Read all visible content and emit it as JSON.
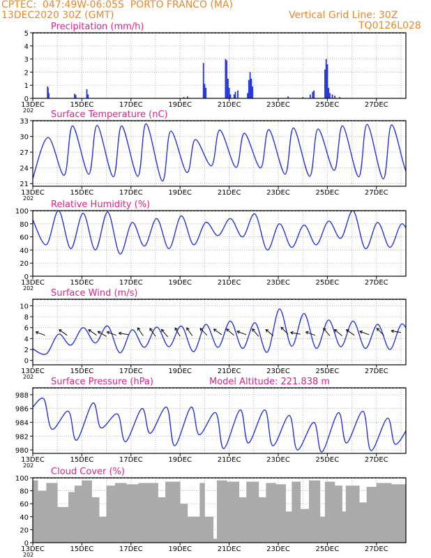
{
  "header": {
    "line1": "CPTEC:  047:49W-06:05S  PORTO FRANCO (MA)",
    "line2": "13DEC2020 30Z (GMT)",
    "grid_note": "Vertical Grid Line: 30Z",
    "code": "TQ0126L028"
  },
  "x_ticks": [
    "13DEC",
    "15DEC",
    "17DEC",
    "19DEC",
    "21DEC",
    "23DEC",
    "25DEC",
    "27DEC"
  ],
  "year_label": "202",
  "colors": {
    "line": "#2233dd",
    "bars": "#2233dd",
    "cloud": "#aaaaaa",
    "title": "#e0208a",
    "header": "#e8882a"
  },
  "chart_data": [
    {
      "id": "precip",
      "type": "bar",
      "title": "Precipitation (mm/h)",
      "ylim": [
        0,
        5
      ],
      "yticks": [
        0,
        1,
        2,
        3,
        4,
        5
      ],
      "x_range_days": [
        0,
        15.2
      ],
      "points": [
        {
          "d": 0.6,
          "v": 0.9
        },
        {
          "d": 0.62,
          "v": 0.8
        },
        {
          "d": 0.65,
          "v": 0.4
        },
        {
          "d": 1.7,
          "v": 0.35
        },
        {
          "d": 1.75,
          "v": 0.25
        },
        {
          "d": 2.2,
          "v": 0.7
        },
        {
          "d": 2.25,
          "v": 0.3
        },
        {
          "d": 6.15,
          "v": 0.1
        },
        {
          "d": 6.3,
          "v": 0.15
        },
        {
          "d": 6.95,
          "v": 2.7
        },
        {
          "d": 7.0,
          "v": 1.1
        },
        {
          "d": 7.05,
          "v": 0.8
        },
        {
          "d": 7.85,
          "v": 3.0
        },
        {
          "d": 7.9,
          "v": 2.9
        },
        {
          "d": 7.95,
          "v": 1.5
        },
        {
          "d": 8.0,
          "v": 0.8
        },
        {
          "d": 8.05,
          "v": 0.3
        },
        {
          "d": 8.2,
          "v": 0.3
        },
        {
          "d": 8.25,
          "v": 0.5
        },
        {
          "d": 8.35,
          "v": 0.6
        },
        {
          "d": 8.75,
          "v": 0.4
        },
        {
          "d": 8.8,
          "v": 1.4
        },
        {
          "d": 8.85,
          "v": 2.0
        },
        {
          "d": 8.9,
          "v": 1.5
        },
        {
          "d": 8.95,
          "v": 0.9
        },
        {
          "d": 10.4,
          "v": 0.15
        },
        {
          "d": 11.0,
          "v": 0.1
        },
        {
          "d": 11.3,
          "v": 0.3
        },
        {
          "d": 11.4,
          "v": 0.5
        },
        {
          "d": 11.45,
          "v": 0.6
        },
        {
          "d": 11.9,
          "v": 2.2
        },
        {
          "d": 11.95,
          "v": 3.0
        },
        {
          "d": 12.0,
          "v": 2.6
        },
        {
          "d": 12.05,
          "v": 0.8
        },
        {
          "d": 12.1,
          "v": 0.4
        },
        {
          "d": 12.2,
          "v": 0.3
        },
        {
          "d": 12.3,
          "v": 0.2
        },
        {
          "d": 12.5,
          "v": 0.1
        }
      ]
    },
    {
      "id": "temp",
      "type": "line",
      "title": "Surface Temperature (nC)",
      "ylim": [
        20.5,
        33
      ],
      "yticks": [
        21,
        24,
        27,
        30,
        33
      ],
      "x_range_days": [
        0,
        15.2
      ],
      "daily_peak_min": [
        [
          29.8,
          22.6
        ],
        [
          32.0,
          22.8
        ],
        [
          32.1,
          22.3
        ],
        [
          32.0,
          22.4
        ],
        [
          32.4,
          21.5
        ],
        [
          31.0,
          23.1
        ],
        [
          29.4,
          24.4
        ],
        [
          31.2,
          24.1
        ],
        [
          30.6,
          24.0
        ],
        [
          31.3,
          22.8
        ],
        [
          31.6,
          22.4
        ],
        [
          31.4,
          23.5
        ],
        [
          32.0,
          22.3
        ],
        [
          32.3,
          21.9
        ],
        [
          32.2,
          22.8
        ],
        [
          31.4,
          23.2
        ]
      ],
      "start_value": 22.0
    },
    {
      "id": "rh",
      "type": "line",
      "title": "Relative Humidity (%)",
      "ylim": [
        0,
        100
      ],
      "yticks": [
        0,
        20,
        40,
        60,
        80,
        100
      ],
      "x_range_days": [
        0,
        15.2
      ],
      "daily_min_max": [
        [
          48,
          100
        ],
        [
          42,
          96
        ],
        [
          40,
          98
        ],
        [
          34,
          82
        ],
        [
          46,
          88
        ],
        [
          42,
          92
        ],
        [
          48,
          82
        ],
        [
          62,
          88
        ],
        [
          60,
          95
        ],
        [
          40,
          80
        ],
        [
          44,
          78
        ],
        [
          48,
          84
        ],
        [
          58,
          100
        ],
        [
          42,
          82
        ],
        [
          44,
          80
        ],
        [
          40,
          72
        ]
      ],
      "start_value": 86
    },
    {
      "id": "wind",
      "type": "line",
      "title": "Surface Wind (m/s)",
      "ylim": [
        -0.8,
        11.2
      ],
      "yticks": [
        0,
        2,
        4,
        6,
        8,
        10
      ],
      "x_range_days": [
        0,
        15.2
      ],
      "daily_min_max": [
        [
          1.2,
          4.8
        ],
        [
          2.8,
          6.0
        ],
        [
          3.2,
          6.3
        ],
        [
          1.4,
          5.6
        ],
        [
          2.4,
          6.1
        ],
        [
          2.5,
          6.3
        ],
        [
          1.6,
          6.6
        ],
        [
          2.4,
          7.2
        ],
        [
          2.2,
          6.9
        ],
        [
          1.5,
          9.4
        ],
        [
          2.6,
          8.6
        ],
        [
          2.2,
          7.4
        ],
        [
          2.5,
          7.2
        ],
        [
          2.2,
          6.6
        ],
        [
          2.0,
          6.7
        ],
        [
          1.9,
          5.5
        ]
      ],
      "start_value": 2.1,
      "arrows": [
        {
          "d": 0.5,
          "v": 4.6,
          "a": 200
        },
        {
          "d": 1.4,
          "v": 4.6,
          "a": 215
        },
        {
          "d": 2.6,
          "v": 4.6,
          "a": 215
        },
        {
          "d": 3.0,
          "v": 4.4,
          "a": 210
        },
        {
          "d": 3.4,
          "v": 4.6,
          "a": 200
        },
        {
          "d": 3.9,
          "v": 4.7,
          "a": 190
        },
        {
          "d": 4.5,
          "v": 4.5,
          "a": 235
        },
        {
          "d": 5.0,
          "v": 4.4,
          "a": 235
        },
        {
          "d": 5.5,
          "v": 4.3,
          "a": 230
        },
        {
          "d": 6.0,
          "v": 4.4,
          "a": 240
        },
        {
          "d": 6.5,
          "v": 4.5,
          "a": 235
        },
        {
          "d": 7.1,
          "v": 4.6,
          "a": 225
        },
        {
          "d": 7.7,
          "v": 4.7,
          "a": 215
        },
        {
          "d": 8.2,
          "v": 4.6,
          "a": 220
        },
        {
          "d": 8.7,
          "v": 4.7,
          "a": 200
        },
        {
          "d": 9.2,
          "v": 4.4,
          "a": 230
        },
        {
          "d": 9.8,
          "v": 4.5,
          "a": 220
        },
        {
          "d": 10.4,
          "v": 4.8,
          "a": 225
        },
        {
          "d": 10.9,
          "v": 4.8,
          "a": 190
        },
        {
          "d": 11.5,
          "v": 4.6,
          "a": 200
        },
        {
          "d": 12.1,
          "v": 4.5,
          "a": 230
        },
        {
          "d": 12.6,
          "v": 4.5,
          "a": 220
        },
        {
          "d": 13.1,
          "v": 4.6,
          "a": 215
        },
        {
          "d": 13.7,
          "v": 4.7,
          "a": 200
        },
        {
          "d": 14.3,
          "v": 4.6,
          "a": 225
        },
        {
          "d": 15.0,
          "v": 5.1,
          "a": 190
        }
      ]
    },
    {
      "id": "pres",
      "type": "line",
      "title": "Surface Pressure (hPa)",
      "subtitle": "Model Altitude: 221.838  m",
      "ylim": [
        979.5,
        989
      ],
      "yticks": [
        980,
        982,
        984,
        986,
        988
      ],
      "x_range_days": [
        0,
        15.2
      ],
      "half_day_max_min": [
        [
          987.4,
          983.0
        ],
        [
          985.6,
          981.4
        ],
        [
          986.8,
          983.2
        ],
        [
          985.2,
          981.2
        ],
        [
          986.0,
          982.4
        ],
        [
          986.2,
          980.6
        ],
        [
          986.2,
          982.2
        ],
        [
          985.4,
          980.2
        ],
        [
          985.8,
          981.0
        ],
        [
          985.8,
          980.6
        ],
        [
          985.0,
          980.0
        ],
        [
          984.0,
          979.7
        ],
        [
          985.4,
          981.0
        ],
        [
          985.6,
          979.9
        ],
        [
          984.6,
          980.8
        ],
        [
          984.4,
          981.4
        ]
      ],
      "start_value": 986.2
    },
    {
      "id": "cloud",
      "type": "area",
      "title": "Cloud Cover (%)",
      "ylim": [
        0,
        100
      ],
      "yticks": [
        0,
        20,
        40,
        60,
        80,
        100
      ],
      "x_range_days": [
        0,
        15.2
      ],
      "segments": [
        {
          "d0": 0.0,
          "d1": 0.2,
          "v": 96
        },
        {
          "d0": 0.2,
          "d1": 0.55,
          "v": 80
        },
        {
          "d0": 0.55,
          "d1": 1.0,
          "v": 92
        },
        {
          "d0": 1.0,
          "d1": 1.45,
          "v": 55
        },
        {
          "d0": 1.45,
          "d1": 1.7,
          "v": 78
        },
        {
          "d0": 1.7,
          "d1": 2.0,
          "v": 88
        },
        {
          "d0": 2.0,
          "d1": 2.4,
          "v": 96
        },
        {
          "d0": 2.4,
          "d1": 2.7,
          "v": 70
        },
        {
          "d0": 2.7,
          "d1": 3.0,
          "v": 40
        },
        {
          "d0": 3.0,
          "d1": 3.35,
          "v": 88
        },
        {
          "d0": 3.35,
          "d1": 3.8,
          "v": 92
        },
        {
          "d0": 3.8,
          "d1": 4.3,
          "v": 90
        },
        {
          "d0": 4.3,
          "d1": 5.1,
          "v": 92
        },
        {
          "d0": 5.1,
          "d1": 5.4,
          "v": 70
        },
        {
          "d0": 5.4,
          "d1": 6.0,
          "v": 94
        },
        {
          "d0": 6.0,
          "d1": 6.3,
          "v": 60
        },
        {
          "d0": 6.3,
          "d1": 6.8,
          "v": 40
        },
        {
          "d0": 6.8,
          "d1": 7.0,
          "v": 92
        },
        {
          "d0": 7.0,
          "d1": 7.35,
          "v": 40
        },
        {
          "d0": 7.35,
          "d1": 7.5,
          "v": 6
        },
        {
          "d0": 7.5,
          "d1": 7.9,
          "v": 96
        },
        {
          "d0": 7.9,
          "d1": 8.4,
          "v": 94
        },
        {
          "d0": 8.4,
          "d1": 8.7,
          "v": 70
        },
        {
          "d0": 8.7,
          "d1": 9.2,
          "v": 94
        },
        {
          "d0": 9.2,
          "d1": 9.5,
          "v": 70
        },
        {
          "d0": 9.5,
          "d1": 9.9,
          "v": 92
        },
        {
          "d0": 9.9,
          "d1": 10.3,
          "v": 90
        },
        {
          "d0": 10.3,
          "d1": 10.55,
          "v": 48
        },
        {
          "d0": 10.55,
          "d1": 10.9,
          "v": 94
        },
        {
          "d0": 10.9,
          "d1": 11.25,
          "v": 52
        },
        {
          "d0": 11.25,
          "d1": 11.7,
          "v": 96
        },
        {
          "d0": 11.7,
          "d1": 11.9,
          "v": 40
        },
        {
          "d0": 11.9,
          "d1": 12.3,
          "v": 94
        },
        {
          "d0": 12.3,
          "d1": 12.6,
          "v": 88
        },
        {
          "d0": 12.6,
          "d1": 12.75,
          "v": 48
        },
        {
          "d0": 12.75,
          "d1": 13.3,
          "v": 88
        },
        {
          "d0": 13.3,
          "d1": 13.6,
          "v": 62
        },
        {
          "d0": 13.6,
          "d1": 14.0,
          "v": 86
        },
        {
          "d0": 14.0,
          "d1": 14.6,
          "v": 92
        },
        {
          "d0": 14.6,
          "d1": 15.2,
          "v": 90
        }
      ]
    }
  ]
}
